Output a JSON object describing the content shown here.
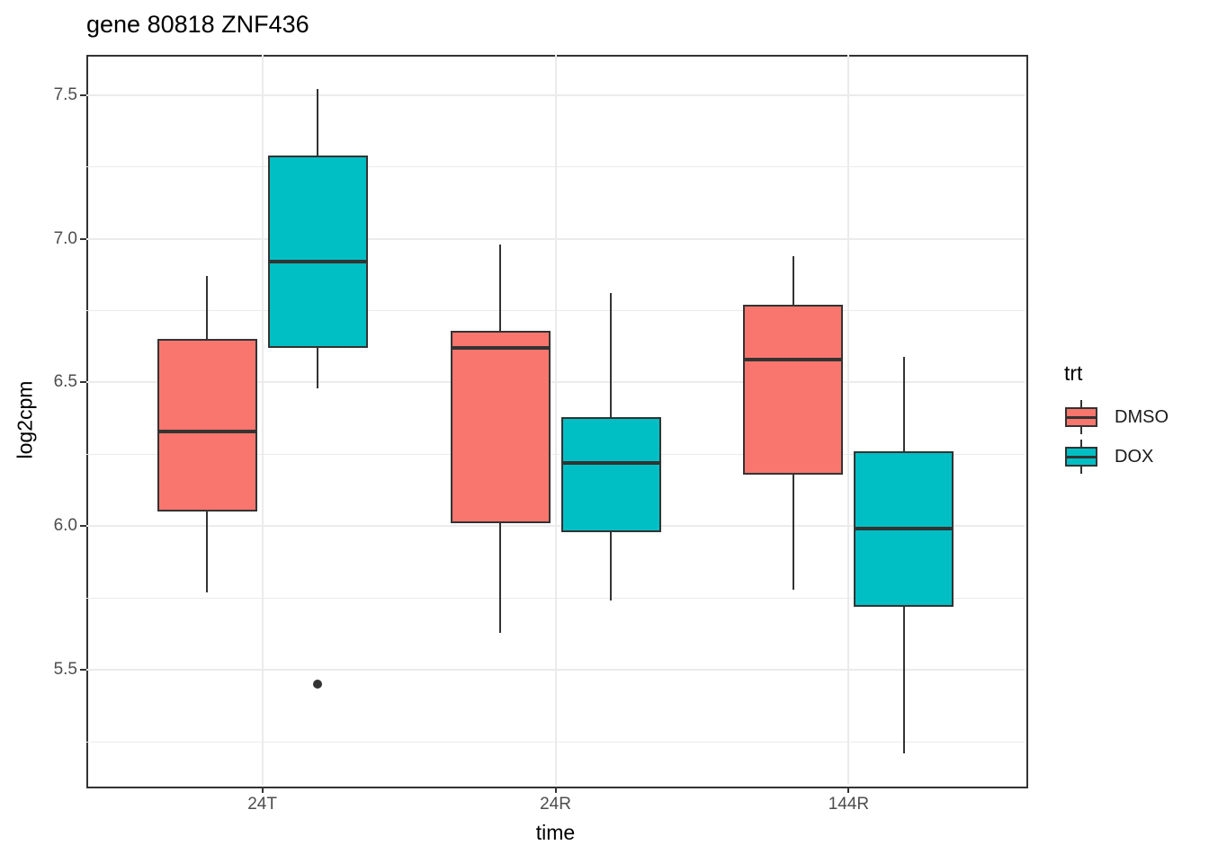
{
  "chart_data": {
    "type": "boxplot",
    "title": "gene 80818 ZNF436",
    "xlabel": "time",
    "ylabel": "log2cpm",
    "categories": [
      "24T",
      "24R",
      "144R"
    ],
    "y_ticks": [
      7.5,
      7.0,
      6.5,
      6.0,
      5.5
    ],
    "y_minor_gridlines": [
      7.25,
      6.75,
      6.25,
      5.75,
      5.25
    ],
    "ylim": [
      5.1,
      7.64
    ],
    "grid": true,
    "legend": {
      "title": "trt",
      "position": "right",
      "entries": [
        {
          "label": "DMSO",
          "color": "#F8766D"
        },
        {
          "label": "DOX",
          "color": "#00BFC4"
        }
      ]
    },
    "series": [
      {
        "name": "DMSO",
        "color": "#F8766D",
        "boxes": [
          {
            "category": "24T",
            "whisker_low": 5.77,
            "q1": 6.05,
            "median": 6.33,
            "q3": 6.65,
            "whisker_high": 6.87,
            "outliers": []
          },
          {
            "category": "24R",
            "whisker_low": 5.63,
            "q1": 6.01,
            "median": 6.62,
            "q3": 6.68,
            "whisker_high": 6.98,
            "outliers": []
          },
          {
            "category": "144R",
            "whisker_low": 5.78,
            "q1": 6.18,
            "median": 6.58,
            "q3": 6.77,
            "whisker_high": 6.94,
            "outliers": []
          }
        ]
      },
      {
        "name": "DOX",
        "color": "#00BFC4",
        "boxes": [
          {
            "category": "24T",
            "whisker_low": 6.48,
            "q1": 6.62,
            "median": 6.92,
            "q3": 7.29,
            "whisker_high": 7.52,
            "outliers": [
              5.45
            ]
          },
          {
            "category": "24R",
            "whisker_low": 5.74,
            "q1": 5.98,
            "median": 6.22,
            "q3": 6.38,
            "whisker_high": 6.81,
            "outliers": []
          },
          {
            "category": "144R",
            "whisker_low": 5.21,
            "q1": 5.72,
            "median": 5.99,
            "q3": 6.26,
            "whisker_high": 6.59,
            "outliers": []
          }
        ]
      }
    ],
    "style": {
      "line_color": "#333333",
      "grid_color": "#ebebeb",
      "tick_label_color": "#4d4d4d",
      "panel_background": "#ffffff"
    }
  }
}
